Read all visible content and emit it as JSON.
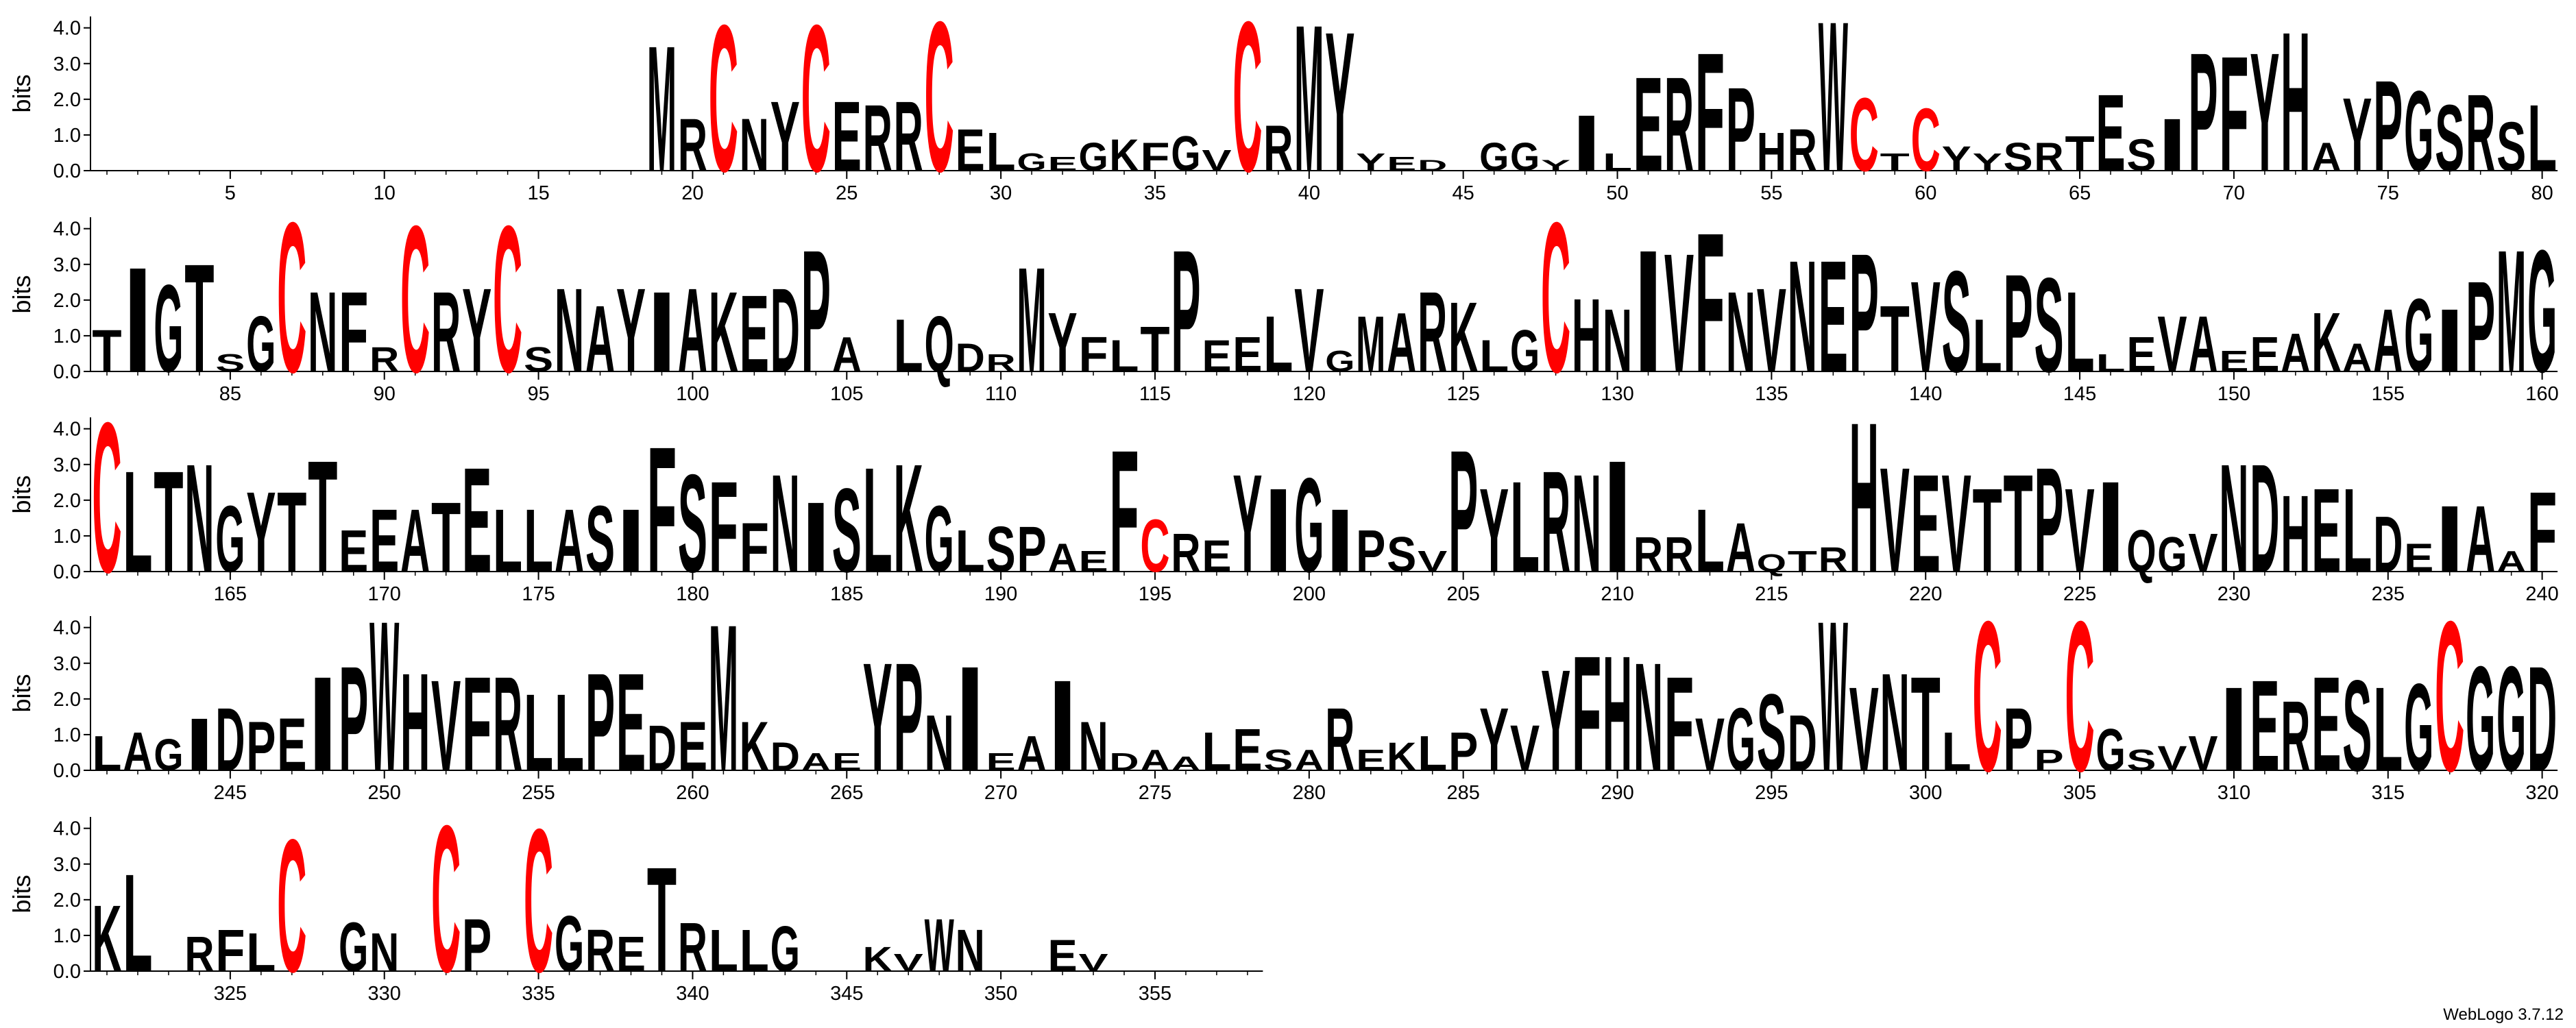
{
  "chart_data": {
    "type": "logo",
    "ylabel": "bits",
    "footer": "WebLogo 3.7.12",
    "color": "#000000",
    "highlight": {
      "letter": "C",
      "color": "#ff0000"
    },
    "ylim": [
      0,
      4.32
    ],
    "yticks": [
      {
        "value": 0,
        "label": "0.0"
      },
      {
        "value": 1,
        "label": "1.0"
      },
      {
        "value": 2,
        "label": "2.0"
      },
      {
        "value": 3,
        "label": "3.0"
      },
      {
        "value": 4,
        "label": "4.0"
      }
    ],
    "xticks": [
      5,
      10,
      15,
      20,
      25,
      30,
      35,
      40,
      45,
      50,
      55,
      60,
      65,
      70,
      75,
      80,
      85,
      90,
      95,
      100,
      105,
      110,
      115,
      120,
      125,
      130,
      135,
      140,
      145,
      150,
      155,
      160,
      165,
      170,
      175,
      180,
      185,
      190,
      195,
      200,
      205,
      210,
      215,
      220,
      225,
      230,
      235,
      240,
      245,
      250,
      255,
      260,
      265,
      270,
      275,
      280,
      285,
      290,
      295,
      300,
      305,
      310,
      315,
      320,
      325,
      330,
      335,
      340,
      345,
      350,
      355
    ],
    "letters": [
      null,
      null,
      null,
      null,
      null,
      null,
      null,
      null,
      null,
      null,
      null,
      null,
      null,
      null,
      null,
      null,
      null,
      null,
      "M",
      "R",
      "C",
      "N",
      "Y",
      "C",
      "E",
      "R",
      "R",
      "C",
      "E",
      "L",
      "G",
      "E",
      "G",
      "K",
      "F",
      "G",
      "V",
      "C",
      "R",
      "M",
      "Y",
      "Y",
      "E",
      "D",
      null,
      "G",
      "G",
      "Y",
      "I",
      "L",
      "E",
      "R",
      "F",
      "P",
      "H",
      "R",
      "W",
      "C",
      "T",
      "C",
      "Y",
      "Y",
      "S",
      "R",
      "T",
      "E",
      "S",
      "I",
      "P",
      "F",
      "Y",
      "H",
      "A",
      "Y",
      "P",
      "G",
      "S",
      "R",
      "S",
      "L",
      "T",
      "I",
      "G",
      "T",
      "S",
      "G",
      "C",
      "N",
      "F",
      "R",
      "C",
      "R",
      "Y",
      "C",
      "S",
      "N",
      "A",
      "Y",
      "I",
      "A",
      "K",
      "E",
      "D",
      "P",
      "A",
      null,
      "L",
      "Q",
      "D",
      "R",
      "M",
      "Y",
      "F",
      "L",
      "T",
      "P",
      "E",
      "E",
      "L",
      "V",
      "G",
      "M",
      "A",
      "R",
      "K",
      "L",
      "G",
      "C",
      "H",
      "N",
      "I",
      "V",
      "F",
      "N",
      "V",
      "N",
      "E",
      "P",
      "T",
      "V",
      "S",
      "L",
      "P",
      "S",
      "L",
      "L",
      "E",
      "V",
      "A",
      "E",
      "E",
      "A",
      "K",
      "A",
      "A",
      "G",
      "I",
      "P",
      "M",
      "G",
      "C",
      "L",
      "T",
      "N",
      "G",
      "Y",
      "T",
      "T",
      "E",
      "E",
      "A",
      "T",
      "E",
      "L",
      "L",
      "A",
      "S",
      "I",
      "F",
      "S",
      "F",
      "F",
      "N",
      "I",
      "S",
      "L",
      "K",
      "G",
      "L",
      "S",
      "P",
      "A",
      "E",
      "F",
      "C",
      "R",
      "E",
      "Y",
      "I",
      "G",
      "I",
      "P",
      "S",
      "V",
      "P",
      "Y",
      "L",
      "R",
      "N",
      "I",
      "R",
      "R",
      "L",
      "A",
      "Q",
      "T",
      "R",
      "H",
      "V",
      "E",
      "V",
      "T",
      "T",
      "P",
      "V",
      "I",
      "Q",
      "G",
      "V",
      "N",
      "D",
      "H",
      "E",
      "L",
      "D",
      "E",
      "I",
      "A",
      "A",
      "F",
      "L",
      "A",
      "G",
      "I",
      "D",
      "P",
      "E",
      "I",
      "P",
      "W",
      "H",
      "V",
      "F",
      "R",
      "L",
      "L",
      "P",
      "E",
      "D",
      "E",
      "M",
      "K",
      "D",
      "A",
      "E",
      "Y",
      "P",
      "N",
      "I",
      "E",
      "A",
      "I",
      "N",
      "D",
      "A",
      "A",
      "L",
      "E",
      "S",
      "A",
      "R",
      "E",
      "K",
      "L",
      "P",
      "Y",
      "V",
      "Y",
      "F",
      "H",
      "N",
      "F",
      "V",
      "G",
      "S",
      "D",
      "W",
      "V",
      "N",
      "T",
      "L",
      "C",
      "P",
      "P",
      "C",
      "G",
      "S",
      "V",
      "V",
      "I",
      "E",
      "R",
      "E",
      "S",
      "L",
      "G",
      "C",
      "G",
      "G",
      "D",
      "K",
      "L",
      null,
      "R",
      "F",
      "L",
      "C",
      null,
      "G",
      "N",
      null,
      "C",
      "P",
      null,
      "C",
      "G",
      "R",
      "E",
      "T",
      "R",
      "L",
      "L",
      "G",
      null,
      null,
      "K",
      "V",
      "W",
      "N",
      null,
      null,
      "E",
      "V",
      null,
      null,
      null,
      null,
      null
    ],
    "bits": [
      null,
      null,
      null,
      null,
      null,
      null,
      null,
      null,
      null,
      null,
      null,
      null,
      null,
      null,
      null,
      null,
      null,
      null,
      3.6,
      1.5,
      4.2,
      1.5,
      2.0,
      4.2,
      2.0,
      1.9,
      2.0,
      4.3,
      1.2,
      1.1,
      0.5,
      0.4,
      0.8,
      0.9,
      0.8,
      1.0,
      0.6,
      4.3,
      1.3,
      4.2,
      4.0,
      0.5,
      0.4,
      0.3,
      null,
      0.8,
      0.8,
      0.3,
      1.6,
      0.5,
      2.7,
      2.7,
      3.4,
      2.4,
      1.1,
      1.2,
      4.3,
      2.1,
      0.5,
      1.8,
      0.7,
      0.5,
      0.8,
      0.8,
      1.0,
      2.2,
      0.9,
      1.5,
      3.4,
      3.3,
      3.4,
      4.0,
      0.8,
      2.1,
      2.6,
      2.3,
      1.9,
      2.2,
      1.4,
      1.9,
      1.2,
      3.0,
      2.5,
      3.1,
      0.5,
      1.6,
      4.3,
      2.3,
      2.3,
      0.7,
      4.2,
      2.3,
      2.4,
      4.2,
      0.7,
      2.4,
      1.9,
      2.4,
      2.3,
      2.4,
      2.3,
      2.2,
      2.4,
      3.5,
      1.0,
      null,
      1.5,
      1.6,
      0.8,
      0.5,
      3.0,
      1.7,
      1.0,
      0.9,
      1.3,
      3.5,
      0.9,
      1.0,
      1.6,
      2.4,
      0.6,
      1.6,
      1.7,
      2.3,
      2.0,
      0.9,
      1.2,
      4.3,
      2.1,
      1.8,
      3.5,
      3.4,
      4.0,
      2.3,
      2.4,
      3.2,
      3.2,
      3.4,
      1.9,
      2.6,
      2.9,
      1.5,
      2.8,
      2.7,
      2.3,
      0.5,
      1.0,
      1.6,
      1.6,
      0.6,
      1.0,
      1.1,
      1.7,
      0.8,
      1.8,
      2.1,
      1.8,
      2.6,
      3.5,
      3.5,
      4.3,
      2.9,
      2.9,
      3.1,
      1.9,
      2.3,
      2.3,
      3.2,
      1.2,
      1.8,
      1.8,
      2.0,
      3.0,
      1.8,
      1.8,
      1.8,
      1.9,
      1.8,
      3.6,
      2.8,
      2.6,
      1.4,
      2.8,
      2.0,
      2.4,
      3.0,
      3.1,
      1.9,
      1.2,
      1.3,
      1.3,
      0.8,
      0.6,
      3.5,
      1.5,
      1.1,
      0.9,
      2.8,
      2.4,
      2.7,
      1.8,
      1.2,
      1.0,
      0.6,
      3.5,
      2.4,
      2.6,
      2.9,
      2.8,
      3.2,
      1.0,
      1.0,
      1.8,
      1.4,
      0.5,
      0.6,
      0.7,
      4.3,
      3.0,
      2.8,
      2.8,
      2.4,
      2.8,
      3.0,
      2.4,
      2.6,
      1.2,
      1.0,
      1.1,
      3.1,
      3.1,
      2.2,
      2.4,
      2.4,
      1.6,
      0.8,
      1.9,
      1.9,
      0.6,
      2.3,
      1.0,
      1.1,
      0.9,
      1.5,
      1.8,
      1.4,
      1.5,
      2.7,
      3.0,
      4.3,
      2.8,
      2.6,
      2.7,
      2.7,
      2.2,
      2.2,
      2.8,
      2.8,
      1.3,
      1.4,
      4.2,
      1.4,
      0.8,
      0.5,
      0.5,
      3.1,
      3.1,
      1.6,
      3.0,
      0.5,
      1.0,
      2.6,
      1.4,
      0.5,
      0.6,
      0.4,
      1.1,
      1.2,
      0.6,
      0.6,
      1.8,
      0.6,
      0.8,
      1.0,
      1.1,
      1.8,
      1.3,
      2.9,
      3.3,
      3.3,
      3.1,
      2.7,
      1.5,
      1.8,
      2.2,
      1.6,
      4.3,
      2.4,
      2.8,
      2.7,
      1.1,
      4.3,
      1.8,
      0.6,
      4.3,
      1.2,
      0.6,
      0.7,
      1.0,
      2.4,
      2.6,
      2.0,
      2.7,
      2.6,
      2.4,
      2.5,
      4.3,
      3.0,
      3.0,
      3.0,
      1.9,
      2.8,
      null,
      1.0,
      1.2,
      1.1,
      3.8,
      null,
      1.4,
      1.1,
      null,
      4.2,
      1.5,
      null,
      4.1,
      1.6,
      1.2,
      1.0,
      3.0,
      1.4,
      1.2,
      1.2,
      1.3,
      null,
      null,
      0.7,
      0.5,
      1.5,
      1.2,
      null,
      null,
      0.9,
      0.5,
      null,
      null,
      null,
      null,
      null
    ]
  }
}
